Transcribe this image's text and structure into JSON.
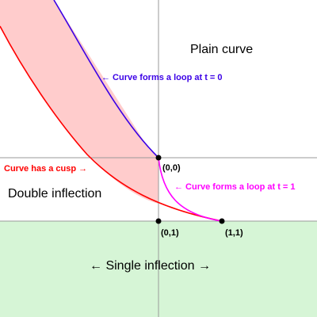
{
  "colors": {
    "background": "#ffffff",
    "single_inflection_region": "#d6f5d6",
    "cusp_region": "#ffcccc",
    "gridline": "#9a9a9a",
    "loop_t0_curve": "#3b00e6",
    "cusp_curve": "#ff0000",
    "loop_t1_curve": "#ff00ff",
    "point": "#000000",
    "text": "#000000"
  },
  "regions": {
    "plain_curve": "Plain curve",
    "double_inflection": "Double inflection",
    "single_inflection": "← Single inflection →"
  },
  "curve_labels": {
    "loop_t0": "← Curve forms a loop at t = 0",
    "cusp": "Curve has a cusp →",
    "loop_t1": "← Curve forms a loop at t = 1"
  },
  "points": [
    {
      "id": "origin",
      "label": "(0,0)"
    },
    {
      "id": "zero-one",
      "label": "(0,1)"
    },
    {
      "id": "one-one",
      "label": "(1,1)"
    }
  ]
}
